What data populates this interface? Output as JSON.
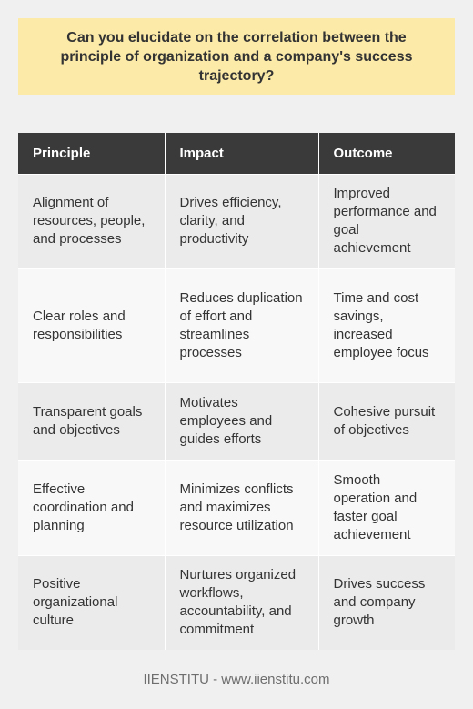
{
  "title": "Can you elucidate on the correlation between the principle of organization and a company's success trajectory?",
  "table": {
    "headers": [
      "Principle",
      "Impact",
      "Outcome"
    ],
    "rows": [
      [
        "Alignment of resources, people, and processes",
        "Drives efficiency, clarity, and productivity",
        "Improved performance and goal achievement"
      ],
      [
        "Clear roles and responsibilities",
        "Reduces duplication of effort and streamlines processes",
        "Time and cost savings, increased employee focus"
      ],
      [
        "Transparent goals and objectives",
        "Motivates employees and guides efforts",
        "Cohesive pursuit of objectives"
      ],
      [
        "Effective coordination and planning",
        "Minimizes conflicts and maximizes resource utilization",
        "Smooth operation and faster goal achievement"
      ],
      [
        "Positive organizational culture",
        "Nurtures organized workflows, accountability, and commitment",
        "Drives success and company growth"
      ]
    ]
  },
  "footer": "IIENSTITU - www.iienstitu.com",
  "colors": {
    "title_background": "#fbeaa8",
    "header_background": "#3a3a3a",
    "page_background": "#f0f0f0"
  }
}
